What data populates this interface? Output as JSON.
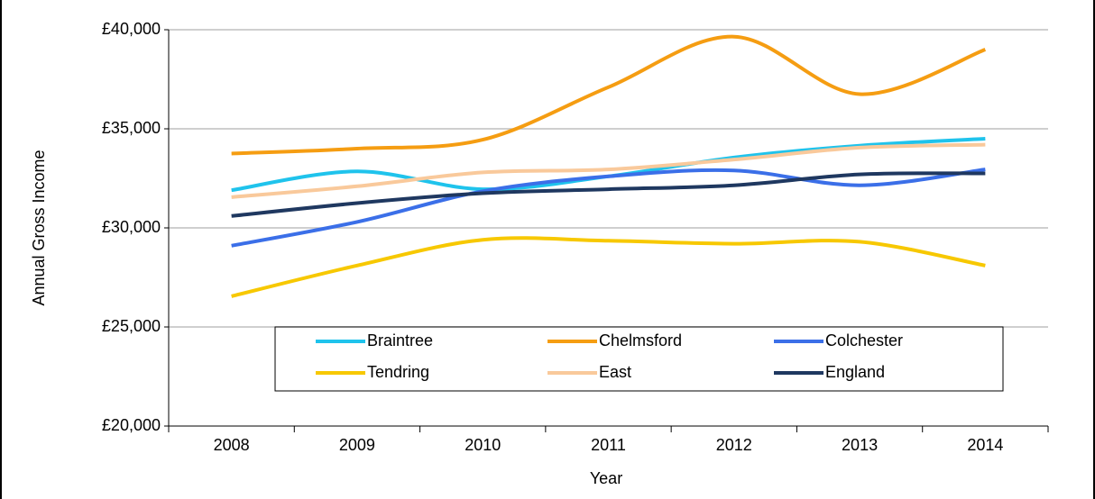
{
  "chart_data": {
    "type": "line",
    "x_label": "Year",
    "y_label": "Annual Gross Income",
    "categories": [
      "2008",
      "2009",
      "2010",
      "2011",
      "2012",
      "2013",
      "2014"
    ],
    "series": [
      {
        "name": "Braintree",
        "color": "#1fc3ec",
        "values": [
          31900,
          32850,
          31950,
          32600,
          33550,
          34150,
          34500
        ]
      },
      {
        "name": "Chelmsford",
        "color": "#f59d12",
        "values": [
          33750,
          34000,
          34450,
          37100,
          39650,
          36750,
          39000
        ]
      },
      {
        "name": "Colchester",
        "color": "#3b6fe8",
        "values": [
          29100,
          30300,
          31850,
          32600,
          32900,
          32150,
          32950
        ]
      },
      {
        "name": "Tendring",
        "color": "#f7c800",
        "values": [
          26550,
          28100,
          29400,
          29350,
          29200,
          29300,
          28100
        ]
      },
      {
        "name": "East",
        "color": "#f9c99b",
        "values": [
          31550,
          32100,
          32800,
          32950,
          33450,
          34050,
          34200
        ]
      },
      {
        "name": "England",
        "color": "#1f3860",
        "values": [
          30600,
          31250,
          31750,
          31950,
          32150,
          32700,
          32750
        ]
      }
    ],
    "ylim": [
      20000,
      40000
    ],
    "yticks": [
      {
        "value": 20000,
        "label": "£20,000"
      },
      {
        "value": 25000,
        "label": "£25,000"
      },
      {
        "value": 30000,
        "label": "£30,000"
      },
      {
        "value": 35000,
        "label": "£35,000"
      },
      {
        "value": 40000,
        "label": "£40,000"
      }
    ],
    "grid": true,
    "smooth": true
  }
}
